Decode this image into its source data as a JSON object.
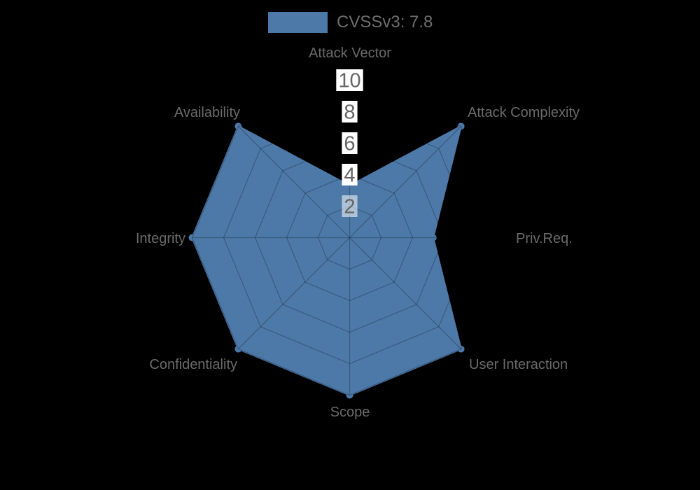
{
  "legend": {
    "label": "CVSSv3: 7.8",
    "swatch_color": "#4d79a8",
    "position": "top"
  },
  "chart_data": {
    "type": "radar",
    "title": "CVSSv3: 7.8",
    "categories": [
      "Attack Vector",
      "Attack Complexity",
      "Priv.Req.",
      "User Interaction",
      "Scope",
      "Confidentiality",
      "Integrity",
      "Availability"
    ],
    "series": [
      {
        "name": "CVSSv3: 7.8",
        "values": [
          3.3,
          10,
          5.3,
          10,
          10,
          10,
          10,
          10
        ]
      }
    ],
    "axis_arrangement": "clockwise-from-top",
    "rmin": 0,
    "rmax": 10,
    "tick_step": 2,
    "ticks": [
      {
        "value": 2,
        "backdrop": "rgba(255,255,255,0.55)"
      },
      {
        "value": 4,
        "backdrop": "#ffffff"
      },
      {
        "value": 6,
        "backdrop": "#ffffff"
      },
      {
        "value": 8,
        "backdrop": "#ffffff"
      },
      {
        "value": 10,
        "backdrop": "#ffffff"
      }
    ],
    "grid": true,
    "legend_position": "top",
    "colors": {
      "background": "#000000",
      "fill": "#4d79a8",
      "grid_line": "rgba(0,0,0,0.25)",
      "axis_label": "#6a6a6a",
      "tick_label": "#666666"
    }
  }
}
